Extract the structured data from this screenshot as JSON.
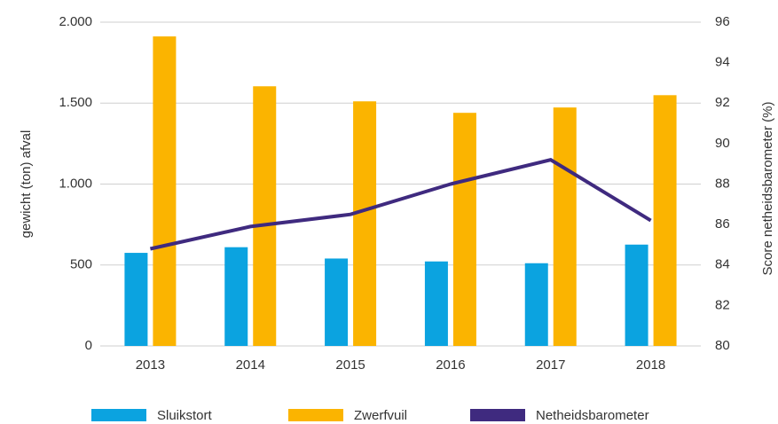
{
  "chart_data": {
    "type": "bar_line",
    "categories": [
      "2013",
      "2014",
      "2015",
      "2016",
      "2017",
      "2018"
    ],
    "ylabel": "gewicht (ton) afval",
    "y2label": "Score netheidsbarometer (%)",
    "ylim": [
      0,
      2000
    ],
    "yticks": [
      0,
      500,
      {
        "value": 1000,
        "label": "1.000"
      },
      {
        "value": 1500,
        "label": "1.500"
      },
      {
        "value": 2000,
        "label": "2.000"
      }
    ],
    "y2lim": [
      80,
      96
    ],
    "y2ticks": [
      80,
      82,
      84,
      86,
      88,
      90,
      92,
      94,
      96
    ],
    "grid": true,
    "legend": "bottom",
    "series": [
      {
        "name": "Sluikstort",
        "type": "bar",
        "color": "#0ba3e0",
        "values": [
          575,
          610,
          540,
          522,
          511,
          626
        ]
      },
      {
        "name": "Zwerfvuil",
        "type": "bar",
        "color": "#fbb400",
        "values": [
          1912,
          1604,
          1511,
          1440,
          1473,
          1549
        ]
      },
      {
        "name": "Netheidsbarometer",
        "type": "line",
        "axis": "y2",
        "color": "#3f2a7f",
        "values": [
          84.8,
          85.9,
          86.5,
          88.0,
          89.2,
          86.2
        ]
      }
    ]
  }
}
